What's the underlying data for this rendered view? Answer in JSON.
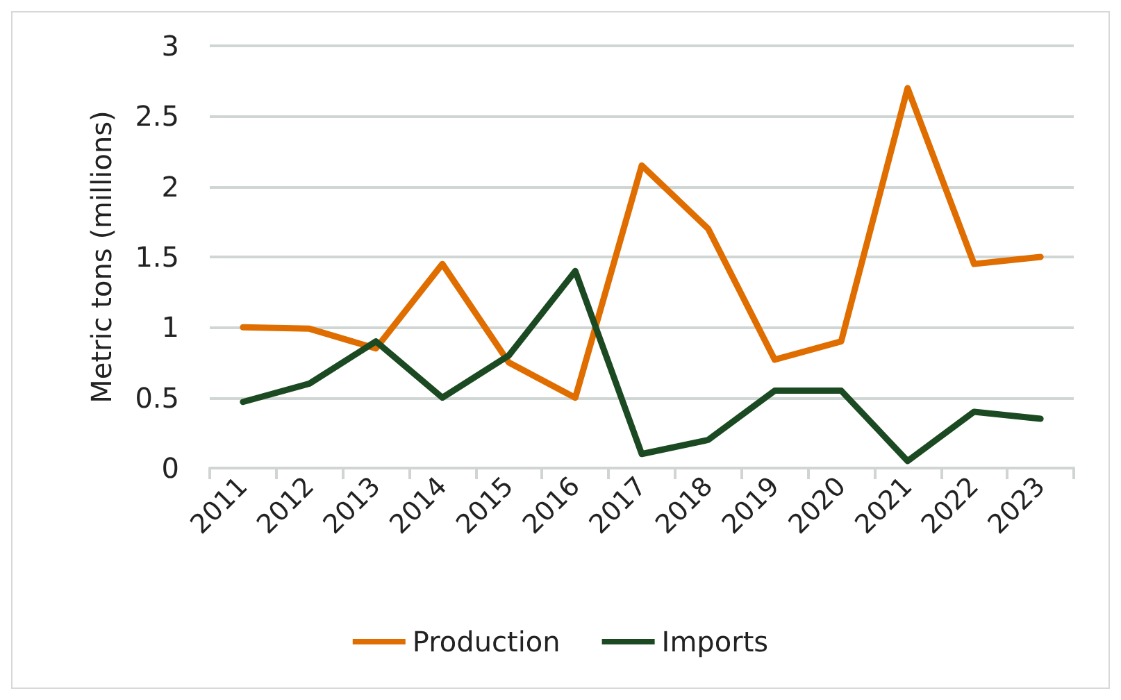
{
  "chart_data": {
    "type": "line",
    "ylabel": "Metric tons (millions)",
    "categories": [
      "2011",
      "2012",
      "2013",
      "2014",
      "2015",
      "2016",
      "2017",
      "2018",
      "2019",
      "2020",
      "2021",
      "2022",
      "2023"
    ],
    "series": [
      {
        "name": "Production",
        "color": "#df6d00",
        "values": [
          1.0,
          0.99,
          0.85,
          1.45,
          0.75,
          0.5,
          2.15,
          1.7,
          0.77,
          0.9,
          2.7,
          1.45,
          1.5
        ]
      },
      {
        "name": "Imports",
        "color": "#1b4a22",
        "values": [
          0.47,
          0.6,
          0.9,
          0.5,
          0.8,
          1.4,
          0.1,
          0.2,
          0.55,
          0.55,
          0.05,
          0.4,
          0.35
        ]
      }
    ],
    "ylim": [
      0,
      3
    ],
    "yticks": [
      0,
      0.5,
      1,
      1.5,
      2,
      2.5,
      3
    ],
    "grid": "y",
    "legend": "bottom",
    "marker": "none",
    "line_style": "solid"
  }
}
